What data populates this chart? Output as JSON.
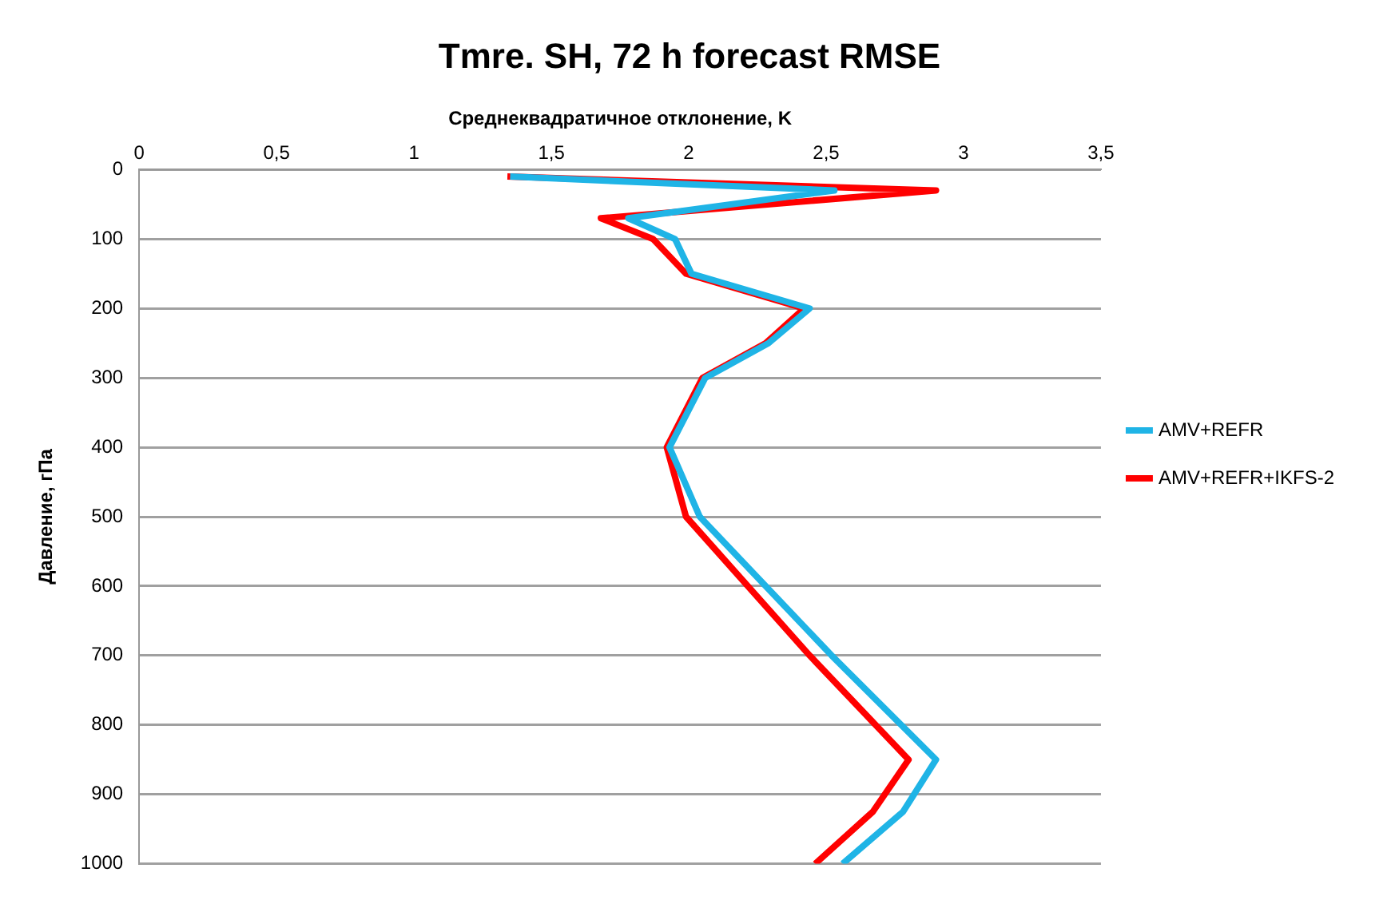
{
  "chart_data": {
    "type": "line",
    "title": "Tmre. SH, 72 h forecast RMSE",
    "xlabel": "Среднеквадратичное отклонение, K",
    "ylabel": "Давление, гПа",
    "xlim": [
      0,
      3.5
    ],
    "xticks": [
      0,
      {
        "value": 0.5,
        "label": "0,5"
      },
      1,
      {
        "value": 1.5,
        "label": "1,5"
      },
      2,
      {
        "value": 2.5,
        "label": "2,5"
      },
      3,
      {
        "value": 3.5,
        "label": "3,5"
      }
    ],
    "ylim": [
      1000,
      0
    ],
    "yticks": [
      0,
      100,
      200,
      300,
      400,
      500,
      600,
      700,
      800,
      900,
      1000
    ],
    "grid": "y",
    "legend": "right",
    "marker": "none",
    "line_style": "solid",
    "series": [
      {
        "name": "AMV+REFR",
        "color": "#1fb4e6",
        "x": [
          1.35,
          2.53,
          1.78,
          1.95,
          2.01,
          2.44,
          2.29,
          2.06,
          1.93,
          2.04,
          2.52,
          2.9,
          2.78,
          2.56
        ],
        "values": [
          10,
          30,
          70,
          100,
          150,
          200,
          250,
          300,
          400,
          500,
          700,
          850,
          925,
          1000
        ]
      },
      {
        "name": "AMV+REFR+IKFS-2",
        "color": "#ff0000",
        "x": [
          1.34,
          2.9,
          1.68,
          1.87,
          1.99,
          2.42,
          2.28,
          2.05,
          1.92,
          1.99,
          2.44,
          2.8,
          2.67,
          2.46
        ],
        "values": [
          10,
          30,
          70,
          100,
          150,
          200,
          250,
          300,
          400,
          500,
          700,
          850,
          925,
          1000
        ]
      }
    ]
  }
}
